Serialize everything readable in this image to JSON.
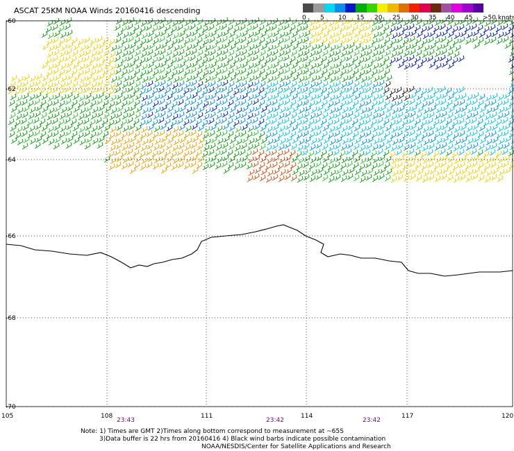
{
  "title": "ASCAT 25KM NOAA Winds 20160416 descending",
  "legend": {
    "labels": [
      "0",
      "5",
      "10",
      "15",
      "20",
      "25",
      "30",
      "35",
      "40",
      "45",
      ">50 knots"
    ],
    "colors": [
      "#4a4a4a",
      "#9a9a9a",
      "#00d8f0",
      "#0090f0",
      "#0018c8",
      "#00b000",
      "#30d800",
      "#f0f000",
      "#f0b800",
      "#e07000",
      "#f02000",
      "#e00050",
      "#6a2a10",
      "#a050a0",
      "#e000e0",
      "#a000d0",
      "#5a00a0"
    ]
  },
  "axes": {
    "lat_labels": [
      "-60",
      "-62",
      "-64",
      "-66",
      "-68",
      "-70"
    ],
    "lon_labels": [
      "105",
      "108",
      "111",
      "114",
      "117",
      "120"
    ]
  },
  "times": [
    "23:43",
    "23:42",
    "23:42"
  ],
  "notes": [
    "Note: 1) Times are GMT 2)Times along bottom correspond to measurement at ~65S",
    "3)Data buffer is 22 hrs from 20160416 4) Black wind barbs indicate possible contamination",
    "NOAA/NESDIS/Center for Satellite Applications and Research"
  ],
  "colors": {
    "grid": "#000000",
    "coast": "#000000",
    "time_text": "#6a0a78"
  }
}
